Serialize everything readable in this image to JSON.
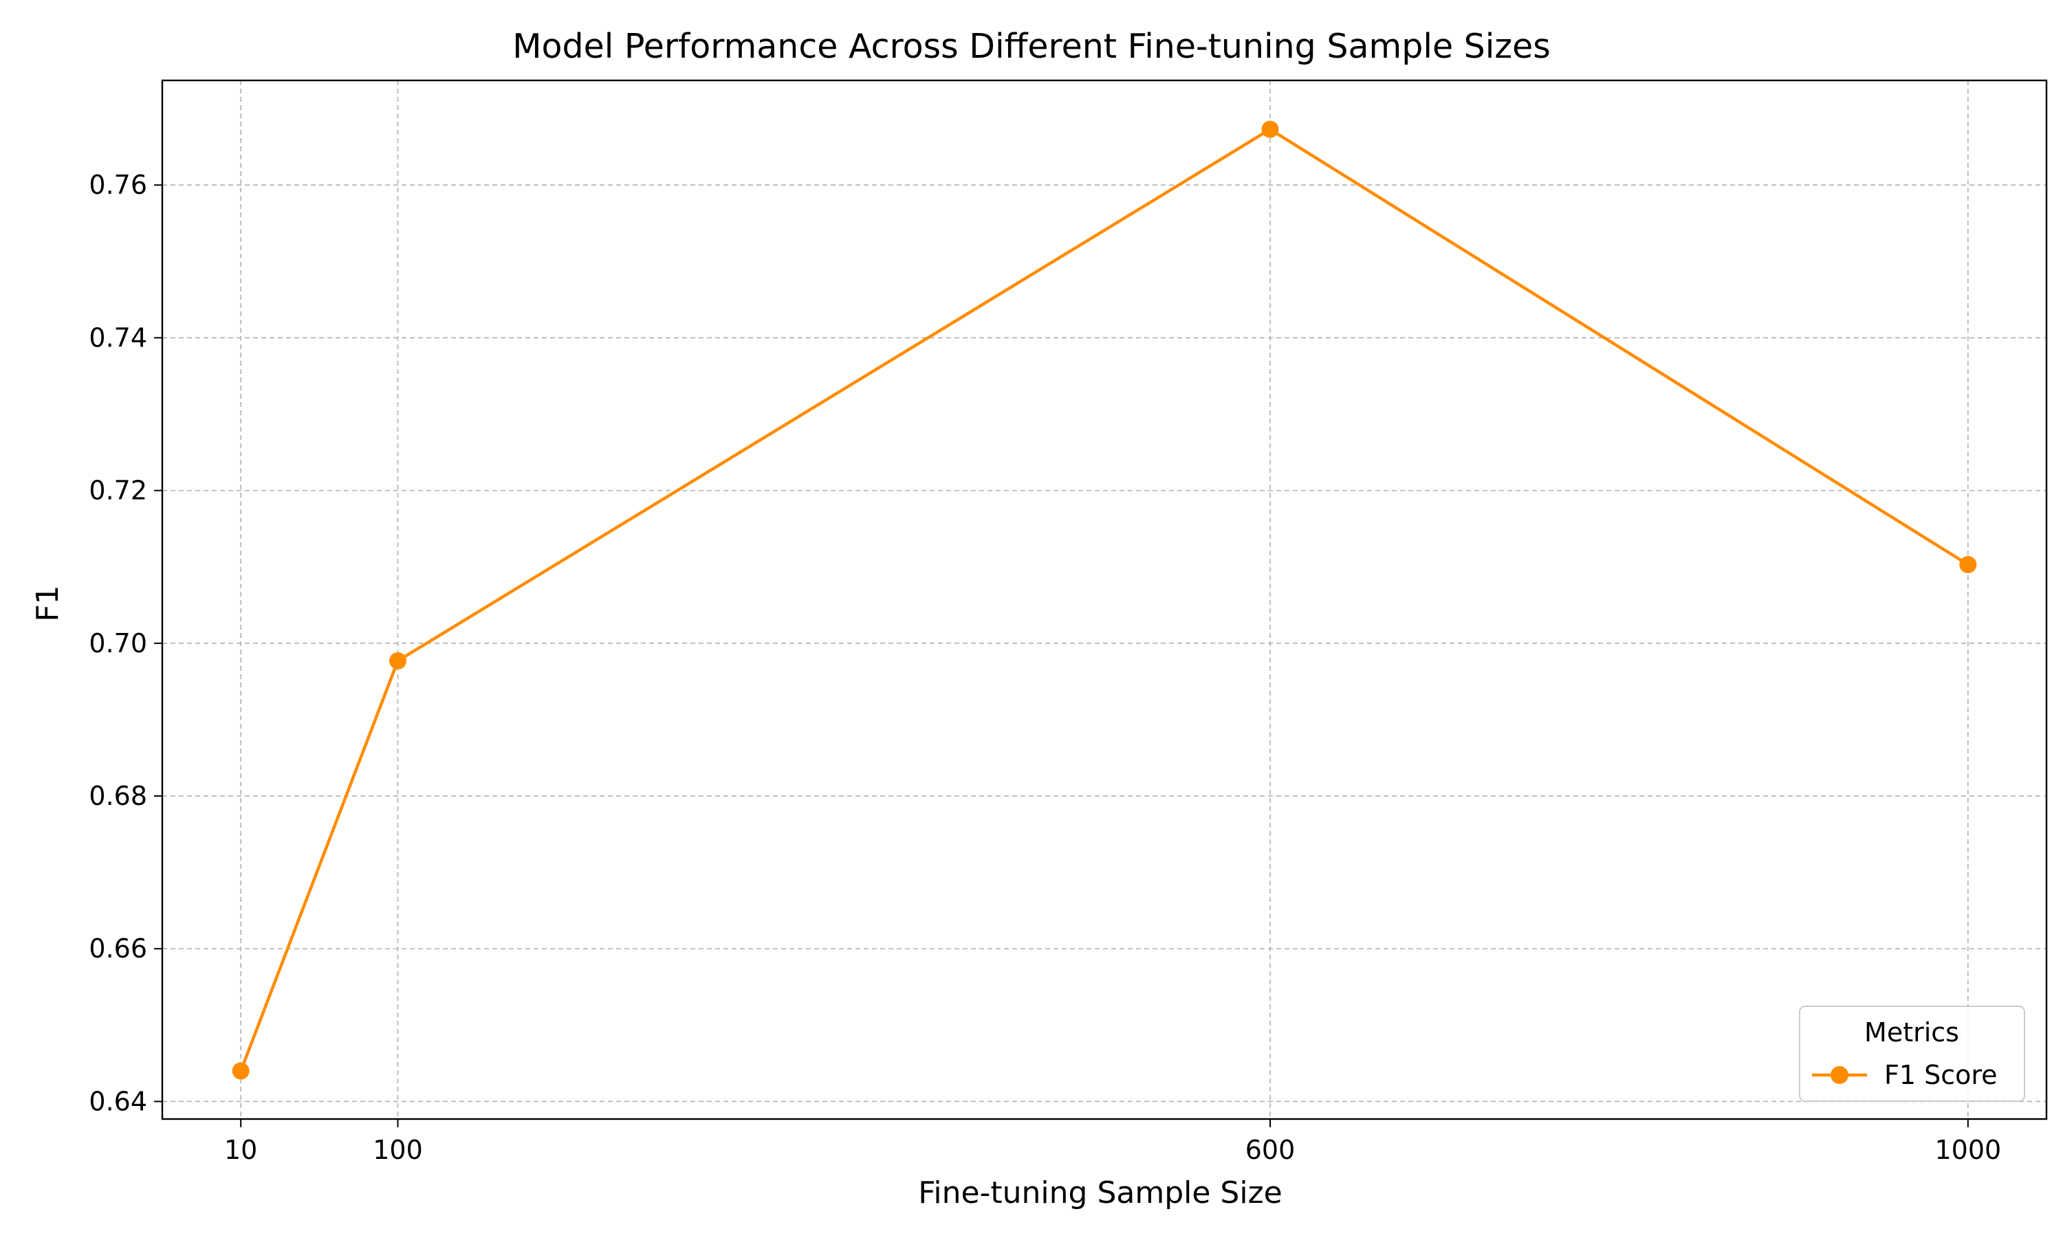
{
  "chart_data": {
    "type": "line",
    "title": "Model Performance Across Different Fine-tuning Sample Sizes",
    "xlabel": "Fine-tuning Sample Size",
    "ylabel": "F1",
    "x": [
      10,
      100,
      600,
      1000
    ],
    "x_tick_labels": [
      "10",
      "100",
      "600",
      "1000"
    ],
    "xlim": [
      -35,
      1045
    ],
    "ylim": [
      0.6377,
      0.7737
    ],
    "y_ticks": [
      0.64,
      0.66,
      0.68,
      0.7,
      0.72,
      0.74,
      0.76
    ],
    "y_tick_labels": [
      "0.64",
      "0.66",
      "0.68",
      "0.70",
      "0.72",
      "0.74",
      "0.76"
    ],
    "series": [
      {
        "name": "F1 Score",
        "values": [
          0.644,
          0.6977,
          0.7673,
          0.7103
        ],
        "color": "#ff8c00",
        "marker": "circle"
      }
    ],
    "grid": true,
    "grid_style": "dashed",
    "legend": {
      "title": "Metrics",
      "position": "lower-right"
    }
  }
}
